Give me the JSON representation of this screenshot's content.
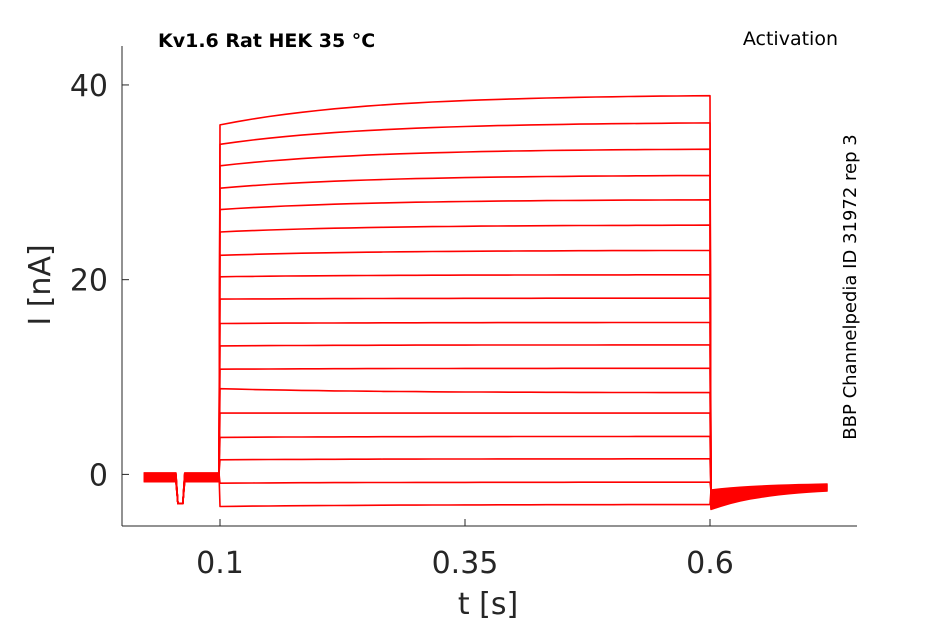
{
  "chart_data": {
    "type": "line",
    "title": "Kv1.6  Rat  HEK  35 °C",
    "subtitle": "Activation",
    "side_label": "BBP Channelpedia ID 31972 rep 3",
    "xlabel": "t [s]",
    "ylabel": "I [nA]",
    "xlim": [
      0.0,
      0.75
    ],
    "ylim": [
      -5.3,
      44
    ],
    "xticks": [
      0.1,
      0.35,
      0.6
    ],
    "xtick_labels": [
      "0.1",
      "0.35",
      "0.6"
    ],
    "yticks": [
      0,
      20,
      40
    ],
    "ytick_labels": [
      "0",
      "20",
      "40"
    ],
    "grid": false,
    "color": "#ff0000",
    "pulse": {
      "start": 0.1,
      "end": 0.6
    },
    "holding_end": 0.72,
    "series": [
      {
        "start": -3.3,
        "end": -3.1
      },
      {
        "start": -0.9,
        "end": -0.8
      },
      {
        "start": 1.5,
        "end": 1.6
      },
      {
        "start": 3.8,
        "end": 3.9
      },
      {
        "start": 6.3,
        "end": 6.3
      },
      {
        "start": 8.8,
        "end": 8.4
      },
      {
        "start": 10.8,
        "end": 10.9
      },
      {
        "start": 13.2,
        "end": 13.3
      },
      {
        "start": 15.5,
        "end": 15.6
      },
      {
        "start": 18.0,
        "end": 18.1
      },
      {
        "start": 20.3,
        "end": 20.5
      },
      {
        "start": 22.5,
        "end": 23.0
      },
      {
        "start": 24.9,
        "end": 25.6
      },
      {
        "start": 27.2,
        "end": 28.2
      },
      {
        "start": 29.4,
        "end": 30.7
      },
      {
        "start": 31.7,
        "end": 33.4
      },
      {
        "start": 33.9,
        "end": 36.1
      },
      {
        "start": 35.9,
        "end": 38.9
      }
    ]
  }
}
